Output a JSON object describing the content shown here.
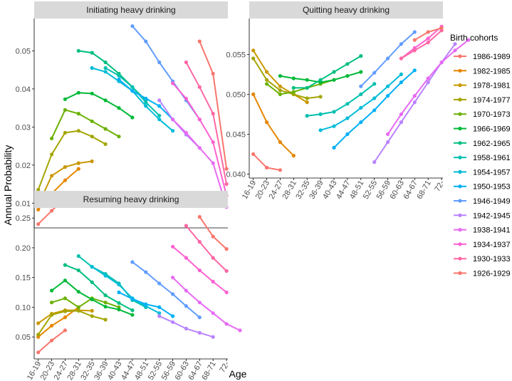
{
  "chart_data": {
    "type": "line",
    "ylabel": "Annual Probability",
    "xlabel": "Age",
    "legend": {
      "title": "Birth cohorts",
      "position": "right",
      "entries": [
        "1986-1989",
        "1982-1985",
        "1978-1981",
        "1974-1977",
        "1970-1973",
        "1966-1969",
        "1962-1965",
        "1958-1961",
        "1954-1957",
        "1950-1953",
        "1946-1949",
        "1942-1945",
        "1938-1941",
        "1934-1937",
        "1930-1933",
        "1926-1929"
      ]
    },
    "cohort_colors": [
      "#F8766D",
      "#E58700",
      "#C99800",
      "#A3A500",
      "#6BB100",
      "#00BA38",
      "#00BF7D",
      "#00C0AF",
      "#00BCD8",
      "#00B0F6",
      "#619CFF",
      "#B983FF",
      "#E76BF3",
      "#FD61D1",
      "#FF67A4",
      "#F8766D"
    ],
    "age_groups": [
      "16-19",
      "20-23",
      "24-27",
      "28-31",
      "32-35",
      "36-39",
      "40-43",
      "44-47",
      "48-51",
      "52-55",
      "56-59",
      "60-63",
      "64-67",
      "68-71",
      "72-"
    ],
    "panels": [
      {
        "title": "Initiating heavy drinking",
        "ylim": [
          0.0035,
          0.0585
        ],
        "yticks": [
          0.01,
          0.02,
          0.03,
          0.04,
          0.05
        ],
        "ytick_labels": [
          "0.01",
          "0.02",
          "0.03",
          "0.04",
          "0.05"
        ],
        "show_x_ticks": false,
        "series": [
          {
            "cohort": 0,
            "start": 0,
            "values": [
              0.0045,
              0.008,
              0.0112
            ]
          },
          {
            "cohort": 1,
            "start": 0,
            "values": [
              0.0083,
              0.0125,
              0.016,
              0.019
            ]
          },
          {
            "cohort": 2,
            "start": 0,
            "values": [
              0.0095,
              0.0172,
              0.0195,
              0.0205,
              0.021
            ]
          },
          {
            "cohort": 3,
            "start": 0,
            "values": [
              0.0135,
              0.0228,
              0.0285,
              0.029,
              0.0275,
              0.0255
            ]
          },
          {
            "cohort": 4,
            "start": 1,
            "values": [
              0.027,
              0.0345,
              0.0335,
              0.0315,
              0.0295,
              0.0275
            ]
          },
          {
            "cohort": 5,
            "start": 2,
            "values": [
              0.0373,
              0.039,
              0.0388,
              0.037,
              0.035,
              0.0325
            ]
          },
          {
            "cohort": 6,
            "start": 3,
            "values": [
              0.05,
              0.0495,
              0.047,
              0.044,
              0.0405,
              0.037
            ]
          },
          {
            "cohort": 7,
            "start": 5,
            "values": [
              0.0455,
              0.0435,
              0.0405,
              0.0365,
              0.033
            ]
          },
          {
            "cohort": 8,
            "start": 4,
            "values": [
              0.0455,
              0.0445,
              0.042,
              0.0395,
              0.0355,
              0.032,
              0.029
            ]
          },
          {
            "cohort": 9,
            "start": 6,
            "values": [
              0.0425,
              0.0395,
              0.0375,
              0.0355,
              0.032
            ]
          },
          {
            "cohort": 10,
            "start": 7,
            "values": [
              0.0565,
              0.0525,
              0.047,
              0.042,
              0.037,
              0.032
            ]
          },
          {
            "cohort": 11,
            "start": 9,
            "values": [
              0.037,
              0.032,
              0.028,
              0.0245
            ]
          },
          {
            "cohort": 12,
            "start": 10,
            "values": [
              0.032,
              0.0285,
              0.0245,
              0.0205,
              0.009
            ]
          },
          {
            "cohort": 13,
            "start": 10,
            "values": [
              0.0415,
              0.0375,
              0.032,
              0.026,
              0.012
            ]
          },
          {
            "cohort": 14,
            "start": 11,
            "values": [
              0.047,
              0.0405,
              0.0335,
              0.015
            ]
          },
          {
            "cohort": 15,
            "start": 12,
            "values": [
              0.0525,
              0.044,
              0.019
            ]
          }
        ]
      },
      {
        "title": "Quitting heavy drinking",
        "ylim": [
          0.0395,
          0.0595
        ],
        "yticks": [
          0.04,
          0.045,
          0.05,
          0.055
        ],
        "ytick_labels": [
          "0.040",
          "0.045",
          "0.050",
          "0.055"
        ],
        "show_x_ticks": true,
        "series": [
          {
            "cohort": 0,
            "start": 0,
            "values": [
              0.0425,
              0.0408,
              0.0405
            ]
          },
          {
            "cohort": 1,
            "start": 0,
            "values": [
              0.05,
              0.0465,
              0.044,
              0.0423
            ]
          },
          {
            "cohort": 2,
            "start": 0,
            "values": [
              0.0555,
              0.0528,
              0.051,
              0.05,
              0.049
            ]
          },
          {
            "cohort": 3,
            "start": 0,
            "values": [
              0.0545,
              0.0518,
              0.0505,
              0.05,
              0.0495,
              0.0497
            ]
          },
          {
            "cohort": 4,
            "start": 1,
            "values": [
              0.0513,
              0.05,
              0.0503,
              0.0508,
              0.0513,
              0.0518
            ]
          },
          {
            "cohort": 5,
            "start": 2,
            "values": [
              0.0523,
              0.052,
              0.0518,
              0.0515,
              0.0518,
              0.0523,
              0.0528
            ]
          },
          {
            "cohort": 6,
            "start": 3,
            "values": [
              0.0508,
              0.0508,
              0.0518,
              0.0528,
              0.0538,
              0.0548
            ]
          },
          {
            "cohort": 7,
            "start": 4,
            "values": [
              0.0473,
              0.0475,
              0.0478,
              0.0488,
              0.05,
              0.0513
            ]
          },
          {
            "cohort": 8,
            "start": 5,
            "values": [
              0.0455,
              0.046,
              0.047,
              0.0483,
              0.0495,
              0.051,
              0.0525
            ]
          },
          {
            "cohort": 9,
            "start": 6,
            "values": [
              0.0433,
              0.045,
              0.0465,
              0.048,
              0.0498,
              0.0515,
              0.053
            ]
          },
          {
            "cohort": 10,
            "start": 8,
            "values": [
              0.051,
              0.0527,
              0.0545,
              0.0563,
              0.0578
            ]
          },
          {
            "cohort": 11,
            "start": 9,
            "values": [
              0.0415,
              0.044,
              0.0465,
              0.049,
              0.0515,
              0.054,
              0.0563
            ]
          },
          {
            "cohort": 12,
            "start": 10,
            "values": [
              0.045,
              0.0475,
              0.0498,
              0.052,
              0.054,
              0.0555,
              0.0568
            ]
          },
          {
            "cohort": 13,
            "start": 11,
            "values": [
              0.0545,
              0.0558,
              0.057,
              0.0585
            ]
          },
          {
            "cohort": 14,
            "start": 11,
            "values": [
              0.0545,
              0.0555,
              0.0565,
              0.058
            ]
          },
          {
            "cohort": 15,
            "start": 12,
            "values": [
              0.0568,
              0.0578,
              0.0583
            ]
          }
        ]
      },
      {
        "title": "Resuming heavy drinking",
        "ylim": [
          0.013,
          0.267
        ],
        "yticks": [
          0.05,
          0.1,
          0.15,
          0.2,
          0.25
        ],
        "ytick_labels": [
          "0.05",
          "0.10",
          "0.15",
          "0.20",
          "0.25"
        ],
        "show_x_ticks": true,
        "series": [
          {
            "cohort": 0,
            "start": 0,
            "values": [
              0.024,
              0.044,
              0.061
            ]
          },
          {
            "cohort": 1,
            "start": 0,
            "values": [
              0.05,
              0.069,
              0.083,
              0.1
            ]
          },
          {
            "cohort": 2,
            "start": 0,
            "values": [
              0.073,
              0.089,
              0.095,
              0.095,
              0.094
            ]
          },
          {
            "cohort": 3,
            "start": 0,
            "values": [
              0.054,
              0.087,
              0.093,
              0.094,
              0.085,
              0.079
            ]
          },
          {
            "cohort": 4,
            "start": 1,
            "values": [
              0.108,
              0.115,
              0.1,
              0.115,
              0.108,
              0.1
            ]
          },
          {
            "cohort": 5,
            "start": 1,
            "values": [
              0.128,
              0.145,
              0.126,
              0.113,
              0.101,
              0.096,
              0.087
            ]
          },
          {
            "cohort": 6,
            "start": 2,
            "values": [
              0.171,
              0.162,
              0.142,
              0.12,
              0.107,
              0.095
            ]
          },
          {
            "cohort": 7,
            "start": 3,
            "values": [
              0.186,
              0.168,
              0.156,
              0.14,
              0.112,
              0.1
            ]
          },
          {
            "cohort": 8,
            "start": 4,
            "values": [
              0.168,
              0.153,
              0.138,
              0.115,
              0.102,
              0.09
            ]
          },
          {
            "cohort": 9,
            "start": 6,
            "values": [
              0.125,
              0.114,
              0.105,
              0.1,
              0.085
            ]
          },
          {
            "cohort": 10,
            "start": 7,
            "values": [
              0.176,
              0.159,
              0.14,
              0.122,
              0.102,
              0.083
            ]
          },
          {
            "cohort": 11,
            "start": 9,
            "values": [
              0.085,
              0.075,
              0.064,
              0.057,
              0.05
            ]
          },
          {
            "cohort": 12,
            "start": 10,
            "values": [
              0.15,
              0.128,
              0.108,
              0.09,
              0.072,
              0.061
            ]
          },
          {
            "cohort": 13,
            "start": 10,
            "values": [
              0.202,
              0.183,
              0.162,
              0.143,
              0.125
            ]
          },
          {
            "cohort": 14,
            "start": 11,
            "values": [
              0.237,
              0.21,
              0.183,
              0.161
            ]
          },
          {
            "cohort": 15,
            "start": 12,
            "values": [
              0.252,
              0.219,
              0.198
            ]
          }
        ]
      }
    ]
  }
}
